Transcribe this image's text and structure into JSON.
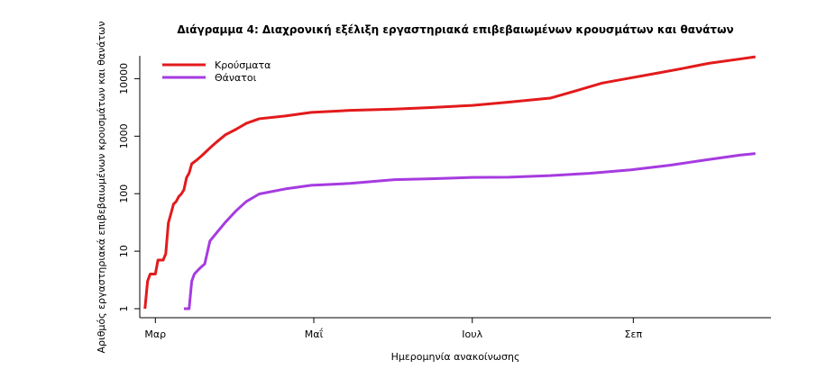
{
  "chart_data": {
    "type": "line",
    "title": "Διάγραμμα 4: Διαχρονική εξέλιξη εργαστηριακά επιβεβαιωμένων κρουσμάτων και θανάτων",
    "xlabel": "Ημερομηνία ανακοίνωσης",
    "ylabel": "Αριθμός εργαστηριακά επιβεβαιωμένων κρουσμάτων και θανάτων",
    "y_scale": "log",
    "ylim": [
      1,
      25000
    ],
    "xlim": [
      "2020-02-24",
      "2020-10-24"
    ],
    "y_ticks": [
      1,
      10,
      100,
      1000,
      10000
    ],
    "y_tick_labels": [
      "1",
      "10",
      "100",
      "1000",
      "10000"
    ],
    "x_ticks": [
      "2020-03-01",
      "2020-05-01",
      "2020-07-01",
      "2020-09-01"
    ],
    "x_tick_labels": [
      "Μαρ",
      "Μαΐ",
      "Ιουλ",
      "Σεπ"
    ],
    "legend_position": "top-left",
    "grid": false,
    "series": [
      {
        "name": "Κρούσματα",
        "color": "#e31a1c",
        "points": [
          [
            "2020-02-26",
            1
          ],
          [
            "2020-02-27",
            3
          ],
          [
            "2020-02-28",
            4
          ],
          [
            "2020-03-01",
            4
          ],
          [
            "2020-03-02",
            7
          ],
          [
            "2020-03-04",
            7
          ],
          [
            "2020-03-05",
            9
          ],
          [
            "2020-03-06",
            31
          ],
          [
            "2020-03-07",
            45
          ],
          [
            "2020-03-08",
            66
          ],
          [
            "2020-03-09",
            73
          ],
          [
            "2020-03-10",
            89
          ],
          [
            "2020-03-11",
            99
          ],
          [
            "2020-03-12",
            117
          ],
          [
            "2020-03-13",
            190
          ],
          [
            "2020-03-14",
            228
          ],
          [
            "2020-03-15",
            331
          ],
          [
            "2020-03-17",
            387
          ],
          [
            "2020-03-19",
            464
          ],
          [
            "2020-03-22",
            624
          ],
          [
            "2020-03-25",
            821
          ],
          [
            "2020-03-28",
            1061
          ],
          [
            "2020-04-01",
            1314
          ],
          [
            "2020-04-05",
            1673
          ],
          [
            "2020-04-10",
            2011
          ],
          [
            "2020-04-20",
            2245
          ],
          [
            "2020-04-30",
            2591
          ],
          [
            "2020-05-15",
            2810
          ],
          [
            "2020-06-01",
            2952
          ],
          [
            "2020-06-15",
            3148
          ],
          [
            "2020-07-01",
            3432
          ],
          [
            "2020-07-15",
            3910
          ],
          [
            "2020-07-31",
            4587
          ],
          [
            "2020-08-10",
            6177
          ],
          [
            "2020-08-20",
            8381
          ],
          [
            "2020-08-31",
            10317
          ],
          [
            "2020-09-10",
            12452
          ],
          [
            "2020-09-20",
            15062
          ],
          [
            "2020-09-30",
            18475
          ],
          [
            "2020-10-12",
            22000
          ],
          [
            "2020-10-18",
            24000
          ]
        ]
      },
      {
        "name": "Θάνατοι",
        "color": "#a63be0",
        "points": [
          [
            "2020-03-12",
            1
          ],
          [
            "2020-03-14",
            1
          ],
          [
            "2020-03-15",
            3
          ],
          [
            "2020-03-16",
            4
          ],
          [
            "2020-03-18",
            5
          ],
          [
            "2020-03-20",
            6
          ],
          [
            "2020-03-22",
            15
          ],
          [
            "2020-03-25",
            22
          ],
          [
            "2020-03-28",
            32
          ],
          [
            "2020-04-01",
            50
          ],
          [
            "2020-04-05",
            73
          ],
          [
            "2020-04-10",
            99
          ],
          [
            "2020-04-20",
            121
          ],
          [
            "2020-04-30",
            140
          ],
          [
            "2020-05-15",
            151
          ],
          [
            "2020-06-01",
            175
          ],
          [
            "2020-06-15",
            182
          ],
          [
            "2020-07-01",
            192
          ],
          [
            "2020-07-15",
            194
          ],
          [
            "2020-07-31",
            206
          ],
          [
            "2020-08-15",
            226
          ],
          [
            "2020-08-31",
            260
          ],
          [
            "2020-09-15",
            312
          ],
          [
            "2020-09-30",
            393
          ],
          [
            "2020-10-12",
            469
          ],
          [
            "2020-10-18",
            499
          ]
        ]
      }
    ]
  }
}
